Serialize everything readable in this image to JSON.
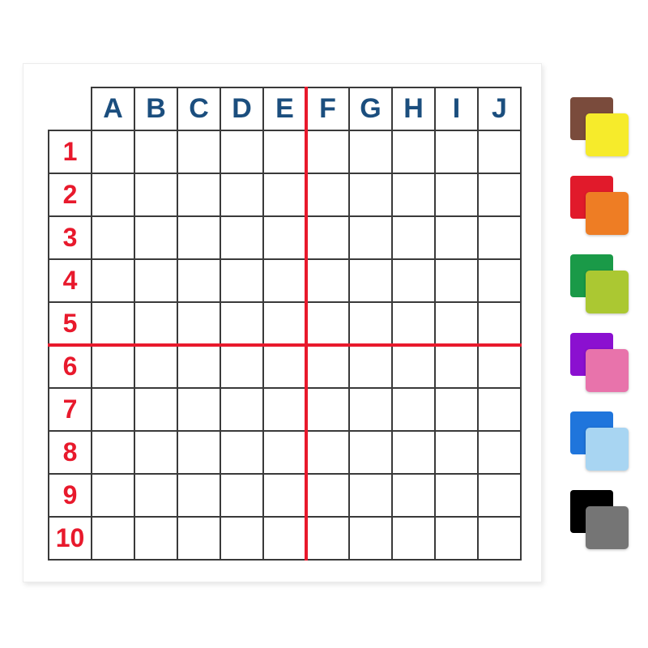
{
  "board": {
    "columns": [
      "A",
      "B",
      "C",
      "D",
      "E",
      "F",
      "G",
      "H",
      "I",
      "J"
    ],
    "rows": [
      "1",
      "2",
      "3",
      "4",
      "5",
      "6",
      "7",
      "8",
      "9",
      "10"
    ],
    "column_header_color": "#1b4e7e",
    "row_header_color": "#e8192c",
    "grid_line_color": "#3a3a3a",
    "crosshair": {
      "color": "#e8192c",
      "vertical_between_columns": "E|F",
      "horizontal_between_rows": "5|6"
    }
  },
  "palette": {
    "pairs": [
      {
        "name": "brown-yellow",
        "back": "#7a4b3c",
        "front": "#f6eb2b"
      },
      {
        "name": "red-orange",
        "back": "#e11a2b",
        "front": "#ee7d24"
      },
      {
        "name": "green-lime",
        "back": "#1a9a48",
        "front": "#abc832"
      },
      {
        "name": "purple-pink",
        "back": "#8b10d0",
        "front": "#e873ab"
      },
      {
        "name": "blue-lightblue",
        "back": "#1f75dc",
        "front": "#a8d5f2"
      },
      {
        "name": "black-gray",
        "back": "#000000",
        "front": "#757575"
      }
    ]
  }
}
